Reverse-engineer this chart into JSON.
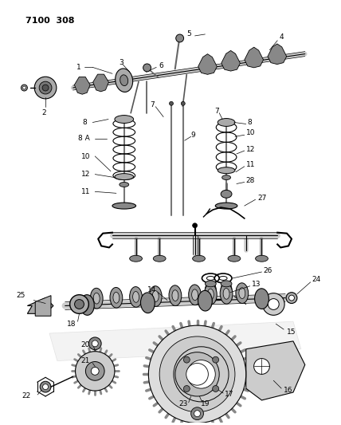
{
  "title": "7100 308",
  "bg_color": "#ffffff",
  "line_color": "#000000",
  "fig_width": 4.28,
  "fig_height": 5.33,
  "dpi": 100,
  "gray_dark": "#333333",
  "gray_mid": "#666666",
  "gray_light": "#aaaaaa",
  "gray_fill": "#bbbbbb"
}
